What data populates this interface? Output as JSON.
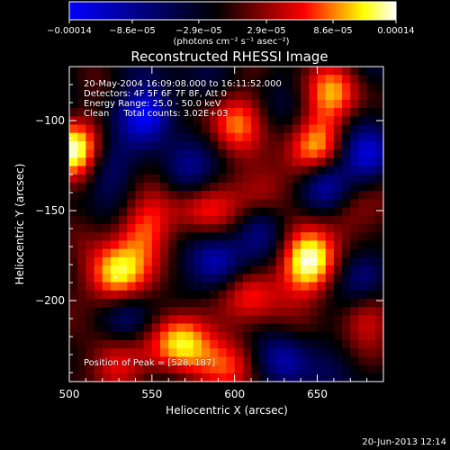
{
  "chart_data": {
    "type": "heatmap",
    "title": "Reconstructed RHESSI Image",
    "xlabel": "Heliocentric X (arcsec)",
    "ylabel": "Heliocentric Y (arcsec)",
    "xlim": [
      500,
      690
    ],
    "ylim": [
      -245,
      -70
    ],
    "x_ticks": [
      500,
      550,
      600,
      650
    ],
    "y_ticks": [
      -100,
      -150,
      -200
    ],
    "x_tick_labels": [
      "500",
      "550",
      "600",
      "650"
    ],
    "y_tick_labels": [
      "−100",
      "−150",
      "−200"
    ],
    "colorbar": {
      "range": [
        -0.00014,
        0.00014
      ],
      "tick_values": [
        -0.00014,
        -8.6e-05,
        -2.9e-05,
        2.9e-05,
        8.6e-05,
        0.00014
      ],
      "tick_labels": [
        "−0.00014",
        "−8.6e−05",
        "−2.9e−05",
        "2.9e−05",
        "8.6e−05",
        "0.00014"
      ],
      "unit_label": "(photons cm⁻² s⁻¹ asec⁻²)",
      "colors": [
        "#0000ff",
        "#000000",
        "#ff0000",
        "#ffff00",
        "#ffffff"
      ]
    },
    "annotations": [
      "20-May-2004 16:09:08.000 to 16:11:52.000",
      "Detectors: 4F 5F 6F 7F 8F, Att 0",
      "Energy Range: 25.0 - 50.0 keV",
      "Clean     Total counts: 3.02E+03"
    ],
    "peak_label": "Position of Peak = [528,-187]",
    "peak": [
      528,
      -187
    ],
    "hot_spots": [
      {
        "x": 503,
        "y": -117,
        "v": 1.0
      },
      {
        "x": 528,
        "y": -187,
        "v": 1.0
      },
      {
        "x": 568,
        "y": -222,
        "v": 0.95
      },
      {
        "x": 645,
        "y": -180,
        "v": 0.95
      },
      {
        "x": 545,
        "y": -158,
        "v": 0.6
      },
      {
        "x": 580,
        "y": -150,
        "v": 0.55
      },
      {
        "x": 620,
        "y": -140,
        "v": 0.55
      },
      {
        "x": 650,
        "y": -115,
        "v": 0.7
      },
      {
        "x": 612,
        "y": -195,
        "v": 0.55
      },
      {
        "x": 660,
        "y": -85,
        "v": 0.6
      },
      {
        "x": 600,
        "y": -100,
        "v": 0.55
      },
      {
        "x": 670,
        "y": -150,
        "v": 0.5
      },
      {
        "x": 600,
        "y": -235,
        "v": 0.5
      },
      {
        "x": 680,
        "y": -205,
        "v": 0.5
      },
      {
        "x": 525,
        "y": -237,
        "v": 0.6
      }
    ],
    "cold_spots": [
      {
        "x": 548,
        "y": -95,
        "v": -0.8
      },
      {
        "x": 655,
        "y": -135,
        "v": -0.8
      },
      {
        "x": 680,
        "y": -120,
        "v": -0.6
      },
      {
        "x": 590,
        "y": -180,
        "v": -0.6
      },
      {
        "x": 680,
        "y": -188,
        "v": -0.6
      },
      {
        "x": 520,
        "y": -125,
        "v": -0.5
      },
      {
        "x": 535,
        "y": -210,
        "v": -0.5
      },
      {
        "x": 615,
        "y": -160,
        "v": -0.5
      },
      {
        "x": 630,
        "y": -235,
        "v": -0.5
      },
      {
        "x": 570,
        "y": -130,
        "v": -0.4
      }
    ]
  },
  "footer_date": "20-Jun-2013 12:14"
}
